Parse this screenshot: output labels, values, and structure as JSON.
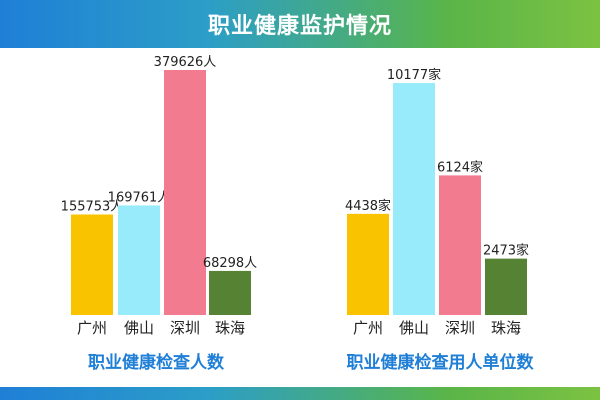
{
  "header": {
    "title": "职业健康监护情况"
  },
  "colors": {
    "header_gradient": [
      "#1f7fd6",
      "#7cc242"
    ],
    "title_blue": "#1f7fd6",
    "bars": [
      "#f9c300",
      "#97ebfa",
      "#f37b8f",
      "#568234"
    ]
  },
  "chart_data": [
    {
      "type": "bar",
      "title": "职业健康检查人数",
      "categories": [
        "广州",
        "佛山",
        "深圳",
        "珠海"
      ],
      "values": [
        155753,
        169761,
        379626,
        68298
      ],
      "value_labels": [
        "155753人",
        "169761人",
        "379626人",
        "68298人"
      ],
      "ylim": [
        0,
        390000
      ],
      "grid": false,
      "legend": "none"
    },
    {
      "type": "bar",
      "title": "职业健康检查用人单位数",
      "categories": [
        "广州",
        "佛山",
        "深圳",
        "珠海"
      ],
      "values": [
        4438,
        10177,
        6124,
        2473
      ],
      "value_labels": [
        "4438家",
        "10177家",
        "6124家",
        "2473家"
      ],
      "ylim": [
        0,
        10500
      ],
      "grid": false,
      "legend": "none"
    }
  ]
}
